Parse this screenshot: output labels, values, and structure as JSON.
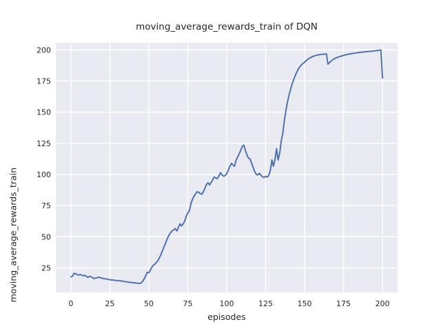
{
  "figure": {
    "title": "moving_average_rewards_train of DQN",
    "xlabel": "episodes",
    "ylabel": "moving_average_rewards_train"
  },
  "colors": {
    "line": "#4C72B0",
    "axes_background": "#EAEAF2",
    "grid": "#FFFFFF",
    "text": "#262626",
    "figure_background": "#FFFFFF"
  },
  "chart_data": {
    "type": "line",
    "title": "moving_average_rewards_train of DQN",
    "xlabel": "episodes",
    "ylabel": "moving_average_rewards_train",
    "grid": true,
    "legend_position": "none",
    "x_ticks": [
      0,
      25,
      50,
      75,
      100,
      125,
      150,
      175,
      200
    ],
    "y_ticks": [
      25,
      50,
      75,
      100,
      125,
      150,
      175,
      200
    ],
    "xlim": [
      -9.7,
      209.7
    ],
    "ylim": [
      5.3,
      205.7
    ],
    "series": [
      {
        "name": "moving_average_rewards_train",
        "points": [
          [
            0,
            17.8
          ],
          [
            1,
            18.3
          ],
          [
            2,
            20.6
          ],
          [
            3,
            20.3
          ],
          [
            4,
            19.6
          ],
          [
            5,
            19.2
          ],
          [
            6,
            19.7
          ],
          [
            7,
            19.1
          ],
          [
            8,
            18.6
          ],
          [
            9,
            18.9
          ],
          [
            10,
            18.1
          ],
          [
            11,
            17.3
          ],
          [
            12,
            18.2
          ],
          [
            13,
            17.9
          ],
          [
            14,
            16.9
          ],
          [
            15,
            16.4
          ],
          [
            16,
            16.8
          ],
          [
            17,
            17.1
          ],
          [
            18,
            17.6
          ],
          [
            19,
            17.1
          ],
          [
            20,
            16.7
          ],
          [
            21,
            16.4
          ],
          [
            22,
            16.2
          ],
          [
            23,
            16.0
          ],
          [
            24,
            15.7
          ],
          [
            25,
            15.5
          ],
          [
            26,
            15.3
          ],
          [
            27,
            15.2
          ],
          [
            28,
            15.0
          ],
          [
            29,
            14.9
          ],
          [
            30,
            14.8
          ],
          [
            31,
            14.6
          ],
          [
            32,
            14.6
          ],
          [
            33,
            14.4
          ],
          [
            34,
            14.1
          ],
          [
            35,
            13.9
          ],
          [
            36,
            13.7
          ],
          [
            37,
            13.5
          ],
          [
            38,
            13.4
          ],
          [
            39,
            13.2
          ],
          [
            40,
            13.1
          ],
          [
            41,
            12.9
          ],
          [
            42,
            12.8
          ],
          [
            43,
            12.6
          ],
          [
            44,
            12.5
          ],
          [
            45,
            12.8
          ],
          [
            46,
            14.1
          ],
          [
            47,
            16.1
          ],
          [
            48,
            18.6
          ],
          [
            49,
            21.4
          ],
          [
            50,
            21.0
          ],
          [
            51,
            23.2
          ],
          [
            52,
            25.6
          ],
          [
            53,
            27.1
          ],
          [
            54,
            28.1
          ],
          [
            55,
            29.6
          ],
          [
            56,
            31.2
          ],
          [
            57,
            33.6
          ],
          [
            58,
            36.4
          ],
          [
            59,
            39.4
          ],
          [
            60,
            42.6
          ],
          [
            61,
            45.6
          ],
          [
            62,
            48.9
          ],
          [
            63,
            51.4
          ],
          [
            64,
            53.3
          ],
          [
            65,
            54.6
          ],
          [
            66,
            55.6
          ],
          [
            67,
            56.5
          ],
          [
            68,
            54.6
          ],
          [
            69,
            57.4
          ],
          [
            70,
            60.4
          ],
          [
            71,
            58.6
          ],
          [
            72,
            60.1
          ],
          [
            73,
            62.4
          ],
          [
            74,
            66.4
          ],
          [
            75,
            68.9
          ],
          [
            76,
            70.6
          ],
          [
            77,
            76.4
          ],
          [
            78,
            79.9
          ],
          [
            79,
            82.4
          ],
          [
            80,
            84.4
          ],
          [
            81,
            86.1
          ],
          [
            82,
            85.6
          ],
          [
            83,
            84.6
          ],
          [
            84,
            84.1
          ],
          [
            85,
            86.1
          ],
          [
            86,
            88.9
          ],
          [
            87,
            91.9
          ],
          [
            88,
            93.4
          ],
          [
            89,
            91.6
          ],
          [
            90,
            93.6
          ],
          [
            91,
            95.6
          ],
          [
            92,
            97.9
          ],
          [
            93,
            97.1
          ],
          [
            94,
            96.6
          ],
          [
            95,
            98.9
          ],
          [
            96,
            101.4
          ],
          [
            97,
            99.6
          ],
          [
            98,
            98.6
          ],
          [
            99,
            99.1
          ],
          [
            100,
            100.6
          ],
          [
            101,
            103.4
          ],
          [
            102,
            106.4
          ],
          [
            103,
            108.9
          ],
          [
            104,
            107.6
          ],
          [
            105,
            106.6
          ],
          [
            106,
            111.4
          ],
          [
            107,
            113.9
          ],
          [
            108,
            116.4
          ],
          [
            109,
            119.4
          ],
          [
            110,
            122.4
          ],
          [
            111,
            123.6
          ],
          [
            112,
            119.1
          ],
          [
            113,
            115.6
          ],
          [
            114,
            113.1
          ],
          [
            115,
            112.4
          ],
          [
            116,
            108.9
          ],
          [
            117,
            105.6
          ],
          [
            118,
            102.1
          ],
          [
            119,
            100.1
          ],
          [
            120,
            99.6
          ],
          [
            121,
            100.9
          ],
          [
            122,
            99.4
          ],
          [
            123,
            98.1
          ],
          [
            124,
            97.6
          ],
          [
            125,
            98.4
          ],
          [
            126,
            97.9
          ],
          [
            127,
            99.1
          ],
          [
            128,
            103.1
          ],
          [
            129,
            111.6
          ],
          [
            130,
            106.6
          ],
          [
            131,
            112.1
          ],
          [
            132,
            120.6
          ],
          [
            133,
            111.6
          ],
          [
            134,
            117.1
          ],
          [
            135,
            126.6
          ],
          [
            136,
            133.1
          ],
          [
            137,
            143.1
          ],
          [
            138,
            151.1
          ],
          [
            139,
            158.1
          ],
          [
            140,
            163.6
          ],
          [
            141,
            168.4
          ],
          [
            142,
            172.6
          ],
          [
            143,
            176.1
          ],
          [
            144,
            179.4
          ],
          [
            145,
            182.1
          ],
          [
            146,
            184.6
          ],
          [
            147,
            186.6
          ],
          [
            148,
            188.1
          ],
          [
            149,
            189.1
          ],
          [
            150,
            190.1
          ],
          [
            151,
            191.3
          ],
          [
            152,
            192.3
          ],
          [
            153,
            193.2
          ],
          [
            154,
            193.9
          ],
          [
            155,
            194.5
          ],
          [
            156,
            195.0
          ],
          [
            157,
            195.4
          ],
          [
            158,
            195.8
          ],
          [
            159,
            196.0
          ],
          [
            160,
            196.2
          ],
          [
            161,
            196.4
          ],
          [
            162,
            196.5
          ],
          [
            163,
            196.6
          ],
          [
            164,
            196.8
          ],
          [
            165,
            188.5
          ],
          [
            166,
            189.8
          ],
          [
            167,
            191.0
          ],
          [
            168,
            192.0
          ],
          [
            169,
            192.8
          ],
          [
            170,
            193.4
          ],
          [
            171,
            193.9
          ],
          [
            172,
            194.4
          ],
          [
            173,
            194.8
          ],
          [
            174,
            195.2
          ],
          [
            175,
            195.6
          ],
          [
            176,
            195.9
          ],
          [
            177,
            196.2
          ],
          [
            178,
            196.5
          ],
          [
            179,
            196.7
          ],
          [
            180,
            196.9
          ],
          [
            181,
            197.1
          ],
          [
            182,
            197.3
          ],
          [
            183,
            197.5
          ],
          [
            184,
            197.7
          ],
          [
            185,
            197.9
          ],
          [
            186,
            198.0
          ],
          [
            187,
            198.2
          ],
          [
            188,
            198.3
          ],
          [
            189,
            198.5
          ],
          [
            190,
            198.6
          ],
          [
            191,
            198.7
          ],
          [
            192,
            198.8
          ],
          [
            193,
            198.9
          ],
          [
            194,
            199.0
          ],
          [
            195,
            199.2
          ],
          [
            196,
            199.4
          ],
          [
            197,
            199.5
          ],
          [
            198,
            199.7
          ],
          [
            199,
            199.8
          ],
          [
            200,
            177.3
          ]
        ]
      }
    ]
  }
}
